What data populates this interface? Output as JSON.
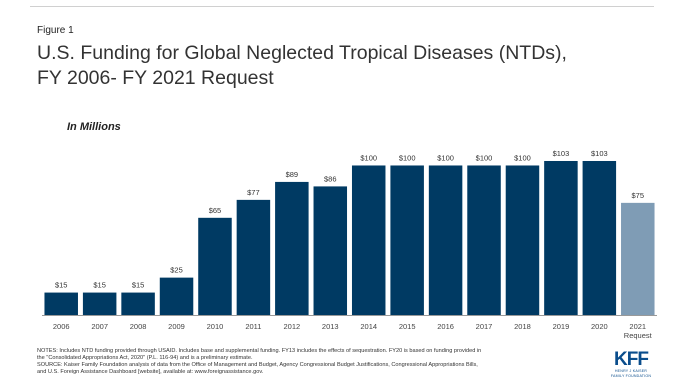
{
  "figure_label": "Figure 1",
  "title_line1": "U.S. Funding for Global Neglected Tropical Diseases (NTDs),",
  "title_line2": "FY 2006- FY 2021 Request",
  "subtitle": "In Millions",
  "chart_data": {
    "type": "bar",
    "categories": [
      "2006",
      "2007",
      "2008",
      "2009",
      "2010",
      "2011",
      "2012",
      "2013",
      "2014",
      "2015",
      "2016",
      "2017",
      "2018",
      "2019",
      "2020",
      "2021\nRequest"
    ],
    "values": [
      15,
      15,
      15,
      25,
      65,
      77,
      89,
      86,
      100,
      100,
      100,
      100,
      100,
      103,
      103,
      75
    ],
    "value_labels": [
      "$15",
      "$15",
      "$15",
      "$25",
      "$65",
      "$77",
      "$89",
      "$86",
      "$100",
      "$100",
      "$100",
      "$100",
      "$100",
      "$103",
      "$103",
      "$75"
    ],
    "title": "U.S. Funding for Global Neglected Tropical Diseases (NTDs), FY 2006- FY 2021 Request",
    "ylabel": "In Millions",
    "xlabel": "",
    "ylim": [
      0,
      105
    ],
    "grid": false,
    "legend": "none",
    "colors": {
      "actual": "#003a63",
      "request": "#7f9cb5"
    },
    "request_index": 15
  },
  "notes": [
    "NOTES: Includes NTD funding provided through USAID. Includes base and supplemental funding. FY13 includes the effects of sequestration. FY20 is based on funding provided in",
    "the \"Consolidated Appropriations Act, 2020\" (P.L. 116-94) and is a preliminary estimate.",
    "SOURCE: Kaiser Family Foundation analysis of data from the Office of Management and Budget, Agency Congressional Budget Justifications, Congressional Appropriations Bills,",
    "and U.S. Foreign Assistance Dashboard [website], available at: www.foreignassistance.gov."
  ],
  "logo": {
    "mark": "KFF",
    "line1": "HENRY J KAISER",
    "line2": "FAMILY FOUNDATION",
    "color": "#0a4d8c"
  }
}
